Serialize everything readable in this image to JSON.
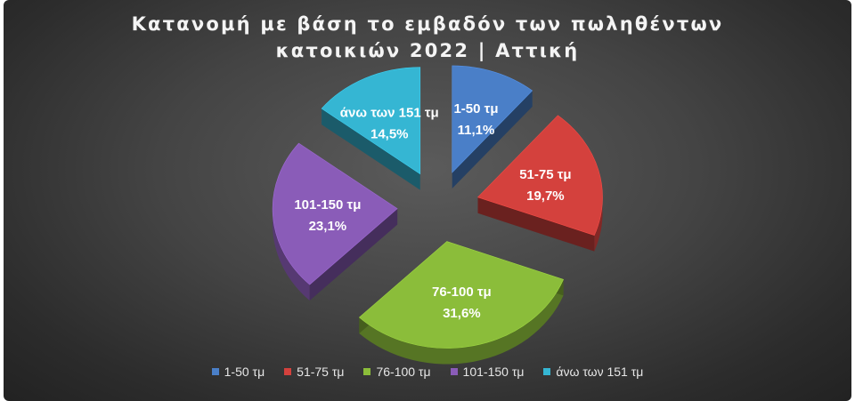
{
  "chart_data": {
    "type": "pie",
    "style": "3d-exploded",
    "title_lines": [
      "Κατανομή με βάση το εμβαδόν των πωληθέντων",
      "κατοικιών 2022 | Αττική"
    ],
    "legend_position": "bottom",
    "slices": [
      {
        "label": "1-50 τμ",
        "value": 11.1,
        "value_label": "11,1%",
        "color": "#4a7fc8"
      },
      {
        "label": "51-75 τμ",
        "value": 19.7,
        "value_label": "19,7%",
        "color": "#d4413d"
      },
      {
        "label": "76-100 τμ",
        "value": 31.6,
        "value_label": "31,6%",
        "color": "#8bbd3a"
      },
      {
        "label": "101-150 τμ",
        "value": 23.1,
        "value_label": "23,1%",
        "color": "#8a5cb8"
      },
      {
        "label": "άνω των 151 τμ",
        "value": 14.5,
        "value_label": "14,5%",
        "color": "#35b6d3"
      }
    ]
  }
}
